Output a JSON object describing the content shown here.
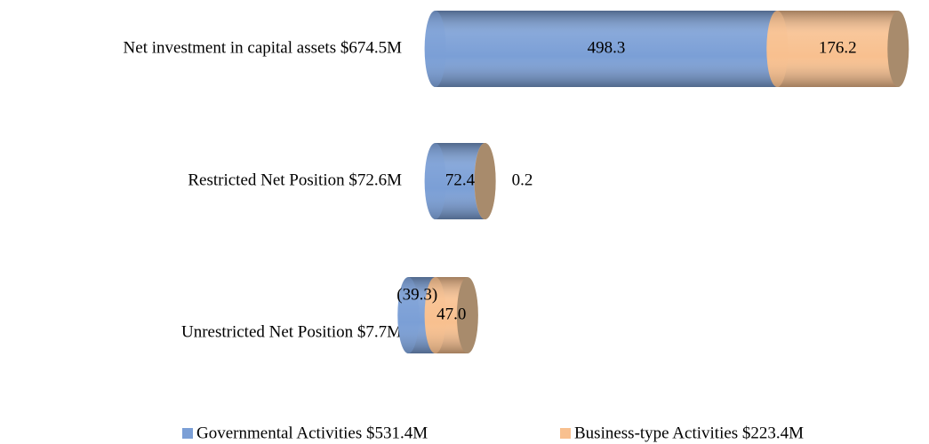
{
  "chart_data": {
    "type": "bar",
    "orientation": "horizontal",
    "stacked": true,
    "categories": [
      "Net investment in capital assets $674.5M",
      "Restricted Net Position $72.6M",
      "Unrestricted Net Position $7.7M"
    ],
    "series": [
      {
        "name": "Governmental Activities $531.4M",
        "color": "#7b9fd6",
        "values": [
          498.3,
          72.4,
          -39.3
        ],
        "value_labels": [
          "498.3",
          "72.4",
          "(39.3)"
        ]
      },
      {
        "name": "Business-type Activities $223.4M",
        "color": "#f8c08f",
        "values": [
          176.2,
          0.2,
          47.0
        ],
        "value_labels": [
          "176.2",
          "0.2",
          "47.0"
        ]
      }
    ],
    "xlim": [
      -50,
      700
    ],
    "legend": "bottom"
  }
}
